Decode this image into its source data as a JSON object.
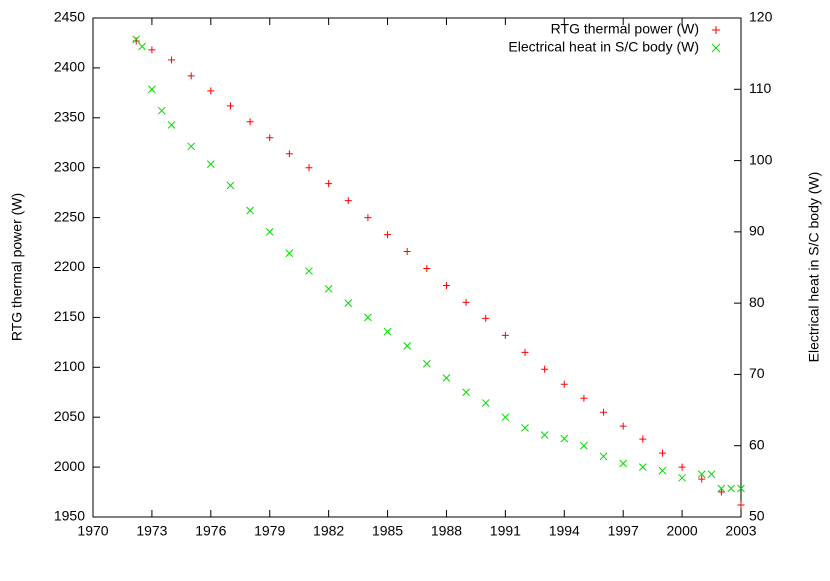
{
  "chart_data": {
    "type": "scatter",
    "xlim": [
      1970,
      2003
    ],
    "xticks": [
      1970,
      1973,
      1976,
      1979,
      1982,
      1985,
      1988,
      1991,
      1994,
      1997,
      2000,
      2003
    ],
    "ylim": [
      1950,
      2450
    ],
    "yticks": [
      1950,
      2000,
      2050,
      2100,
      2150,
      2200,
      2250,
      2300,
      2350,
      2400,
      2450
    ],
    "y2lim": [
      50,
      120
    ],
    "y2ticks": [
      50,
      60,
      70,
      80,
      90,
      100,
      110,
      120
    ],
    "ylabel": "RTG thermal power (W)",
    "y2label": "Electrical heat in S/C body (W)",
    "legend": "top-right",
    "series": [
      {
        "name": "RTG thermal power (W)",
        "color": "#ff0000",
        "marker": "plus",
        "axis": "y",
        "x": [
          1972.2,
          1973,
          1974,
          1975,
          1976,
          1977,
          1978,
          1979,
          1980,
          1981,
          1982,
          1983,
          1984,
          1985,
          1986,
          1987,
          1988,
          1989,
          1990,
          1991,
          1992,
          1993,
          1994,
          1995,
          1996,
          1997,
          1998,
          1999,
          2000,
          2001,
          2002,
          2003
        ],
        "values": [
          2427,
          2418,
          2408,
          2392,
          2377,
          2362,
          2346,
          2330,
          2314,
          2300,
          2284,
          2267,
          2250,
          2233,
          2216,
          2199,
          2182,
          2165,
          2149,
          2132,
          2115,
          2098,
          2083,
          2069,
          2055,
          2041,
          2028,
          2014,
          2000,
          1988,
          1975,
          1962
        ]
      },
      {
        "name": "Electrical heat in S/C body (W)",
        "color": "#00dd00",
        "marker": "cross",
        "axis": "y2",
        "x": [
          1972.2,
          1972.5,
          1973,
          1973.5,
          1974,
          1975,
          1976,
          1977,
          1978,
          1979,
          1980,
          1981,
          1982,
          1983,
          1984,
          1985,
          1986,
          1987,
          1988,
          1989,
          1990,
          1991,
          1992,
          1993,
          1994,
          1995,
          1996,
          1997,
          1998,
          1999,
          2000,
          2001,
          2001.5,
          2002,
          2002.5,
          2003
        ],
        "values": [
          117,
          116,
          110,
          107,
          105,
          102,
          99.5,
          96.5,
          93,
          90,
          87,
          84.5,
          82,
          80,
          78,
          76,
          74,
          71.5,
          69.5,
          67.5,
          66,
          64,
          62.5,
          61.5,
          61,
          60,
          58.5,
          57.5,
          57,
          56.5,
          55.5,
          56,
          56,
          54,
          54,
          54
        ]
      }
    ]
  }
}
